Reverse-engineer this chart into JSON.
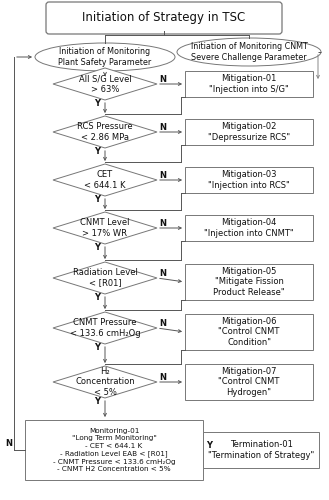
{
  "title": "Initiation of Strategy in TSC",
  "left_oval_label": "Initiation of Monitoring\nPlant Safety Parameter",
  "right_oval_label": "Initiation of Monitoring CNMT\nSevere Challenge Parameter",
  "diamond_labels": [
    "All S/G Level\n> 63%",
    "RCS Pressure\n< 2.86 MPa",
    "CET\n< 644.1 K",
    "CNMT Level\n> 17% WR",
    "Radiation Level\n< [R01]",
    "CNMT Pressure\n< 133.6 cmH₂Og",
    "H₂\nConcentration\n< 5%"
  ],
  "mitigation_labels": [
    "Mitigation-01\n\"Injection into S/G\"",
    "Mitigation-02\n\"Depressurize RCS\"",
    "Mitigation-03\n\"Injection into RCS\"",
    "Mitigation-04\n\"Injection into CNMT\"",
    "Mitigation-05\n\"Mitigate Fission\nProduct Release\"",
    "Mitigation-06\n\"Control CNMT\nCondition\"",
    "Mitigation-07\n\"Control CNMT\nHydrogen\""
  ],
  "monitoring_label": "Monitoring-01\n\"Long Term Monitoring\"\n- CET < 644.1 K\n- Radiation Level EAB < [R01]\n- CNMT Pressure < 133.6 cmH₂Og\n- CNMT H2 Concentration < 5%",
  "termination_label": "Termination-01\n\"Termination of Strategy\"",
  "border_color": "#777777",
  "arrow_color": "#555555",
  "text_color": "#111111"
}
